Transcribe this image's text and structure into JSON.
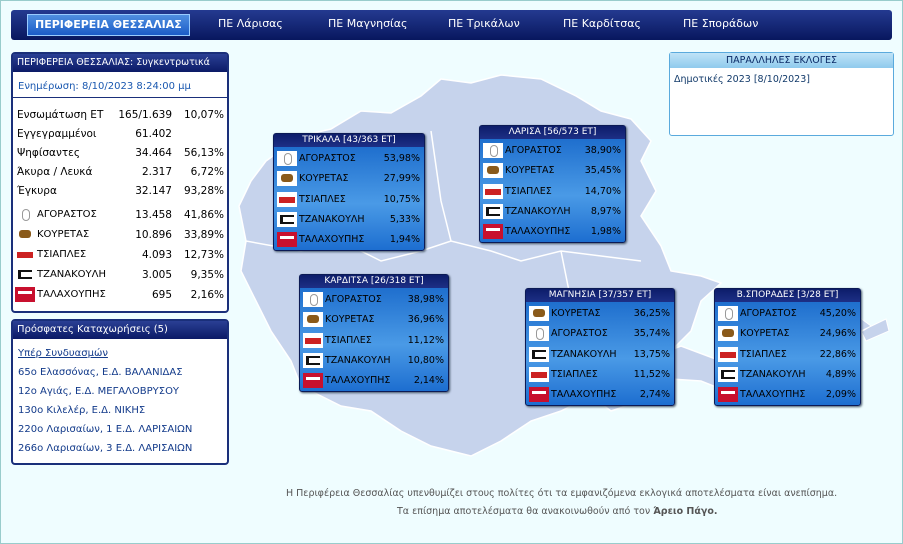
{
  "nav": {
    "tabs": [
      "ΠΕΡΙΦΕΡΕΙΑ ΘΕΣΣΑΛΙΑΣ",
      "ΠΕ Λάρισας",
      "ΠΕ Μαγνησίας",
      "ΠΕ Τρικάλων",
      "ΠΕ Καρδίτσας",
      "ΠΕ Σποράδων"
    ]
  },
  "summary": {
    "title": "ΠΕΡΙΦΕΡΕΙΑ ΘΕΣΣΑΛΙΑΣ: Συγκεντρωτικά",
    "updated": "Ενημέρωση: 8/10/2023 8:24:00 μμ",
    "rows": [
      {
        "label": "Ενσωμάτωση ΕΤ",
        "value": "165/1.639",
        "pct": "10,07%"
      },
      {
        "label": "Εγγεγραμμένοι",
        "value": "61.402"
      },
      {
        "label": "Ψηφίσαντες",
        "value": "34.464",
        "pct": "56,13%"
      },
      {
        "label": "Άκυρα / Λευκά",
        "value": "2.317",
        "pct": "6,72%"
      },
      {
        "label": "Έγκυρα",
        "value": "32.147",
        "pct": "93,28%"
      }
    ],
    "candidates": [
      {
        "name": "ΑΓΟΡΑΣΤΟΣ",
        "votes": "13.458",
        "pct": "41,86%"
      },
      {
        "name": "ΚΟΥΡΕΤΑΣ",
        "votes": "10.896",
        "pct": "33,89%"
      },
      {
        "name": "ΤΣΙΑΠΛΕΣ",
        "votes": "4.093",
        "pct": "12,73%"
      },
      {
        "name": "ΤΖΑΝΑΚΟΥΛΗ",
        "votes": "3.005",
        "pct": "9,35%"
      },
      {
        "name": "ΤΑΛΑΧΟΥΠΗΣ",
        "votes": "695",
        "pct": "2,16%"
      }
    ]
  },
  "recent": {
    "title": "Πρόσφατες Καταχωρήσεις (5)",
    "subtitle": "Υπέρ Συνδυασμών",
    "items": [
      "65ο Ελασσόνας, Ε.Δ. ΒΑΛΑΝΙΔΑΣ",
      "12ο Αγιάς, Ε.Δ. ΜΕΓΑΛΟΒΡΥΣΟΥ",
      "130ο Κιλελέρ, Ε.Δ. ΝΙΚΗΣ",
      "220ο Λαρισαίων, 1 Ε.Δ. ΛΑΡΙΣΑΙΩΝ",
      "266ο Λαρισαίων, 3 Ε.Δ. ΛΑΡΙΣΑΙΩΝ"
    ]
  },
  "parallel": {
    "title": "ΠΑΡΑΛΛΗΛΕΣ ΕΚΛΟΓΕΣ",
    "items": [
      "Δημοτικές 2023 [8/10/2023]"
    ]
  },
  "regions": [
    {
      "title": "ΤΡΙΚΑΛΑ [43/363 ΕΤ]",
      "rows": [
        {
          "name": "ΑΓΟΡΑΣΤΟΣ",
          "pct": "53,98%"
        },
        {
          "name": "ΚΟΥΡΕΤΑΣ",
          "pct": "27,99%"
        },
        {
          "name": "ΤΣΙΑΠΛΕΣ",
          "pct": "10,75%"
        },
        {
          "name": "ΤΖΑΝΑΚΟΥΛΗ",
          "pct": "5,33%"
        },
        {
          "name": "ΤΑΛΑΧΟΥΠΗΣ",
          "pct": "1,94%"
        }
      ]
    },
    {
      "title": "ΛΑΡΙΣΑ [56/573 ΕΤ]",
      "rows": [
        {
          "name": "ΑΓΟΡΑΣΤΟΣ",
          "pct": "38,90%"
        },
        {
          "name": "ΚΟΥΡΕΤΑΣ",
          "pct": "35,45%"
        },
        {
          "name": "ΤΣΙΑΠΛΕΣ",
          "pct": "14,70%"
        },
        {
          "name": "ΤΖΑΝΑΚΟΥΛΗ",
          "pct": "8,97%"
        },
        {
          "name": "ΤΑΛΑΧΟΥΠΗΣ",
          "pct": "1,98%"
        }
      ]
    },
    {
      "title": "ΚΑΡΔΙΤΣΑ [26/318 ΕΤ]",
      "rows": [
        {
          "name": "ΑΓΟΡΑΣΤΟΣ",
          "pct": "38,98%"
        },
        {
          "name": "ΚΟΥΡΕΤΑΣ",
          "pct": "36,96%"
        },
        {
          "name": "ΤΣΙΑΠΛΕΣ",
          "pct": "11,12%"
        },
        {
          "name": "ΤΖΑΝΑΚΟΥΛΗ",
          "pct": "10,80%"
        },
        {
          "name": "ΤΑΛΑΧΟΥΠΗΣ",
          "pct": "2,14%"
        }
      ]
    },
    {
      "title": "ΜΑΓΝΗΣΙΑ [37/357 ΕΤ]",
      "rows": [
        {
          "name": "ΚΟΥΡΕΤΑΣ",
          "pct": "36,25%"
        },
        {
          "name": "ΑΓΟΡΑΣΤΟΣ",
          "pct": "35,74%"
        },
        {
          "name": "ΤΖΑΝΑΚΟΥΛΗ",
          "pct": "13,75%"
        },
        {
          "name": "ΤΣΙΑΠΛΕΣ",
          "pct": "11,52%"
        },
        {
          "name": "ΤΑΛΑΧΟΥΠΗΣ",
          "pct": "2,74%"
        }
      ]
    },
    {
      "title": "Β.ΣΠΟΡΑΔΕΣ [3/28 ΕΤ]",
      "rows": [
        {
          "name": "ΑΓΟΡΑΣΤΟΣ",
          "pct": "45,20%"
        },
        {
          "name": "ΚΟΥΡΕΤΑΣ",
          "pct": "24,96%"
        },
        {
          "name": "ΤΣΙΑΠΛΕΣ",
          "pct": "22,86%"
        },
        {
          "name": "ΤΖΑΝΑΚΟΥΛΗ",
          "pct": "4,89%"
        },
        {
          "name": "ΤΑΛΑΧΟΥΠΗΣ",
          "pct": "2,09%"
        }
      ]
    }
  ],
  "footer": {
    "line1": "Η Περιφέρεια Θεσσαλίας υπενθυμίζει στους πολίτες ότι τα εμφανιζόμενα εκλογικά αποτελέσματα είναι ανεπίσημα.",
    "line2": "Τα επίσημα αποτελέσματα θα ανακοινωθούν από τον ",
    "line2_bold": "Άρειο Πάγο."
  }
}
